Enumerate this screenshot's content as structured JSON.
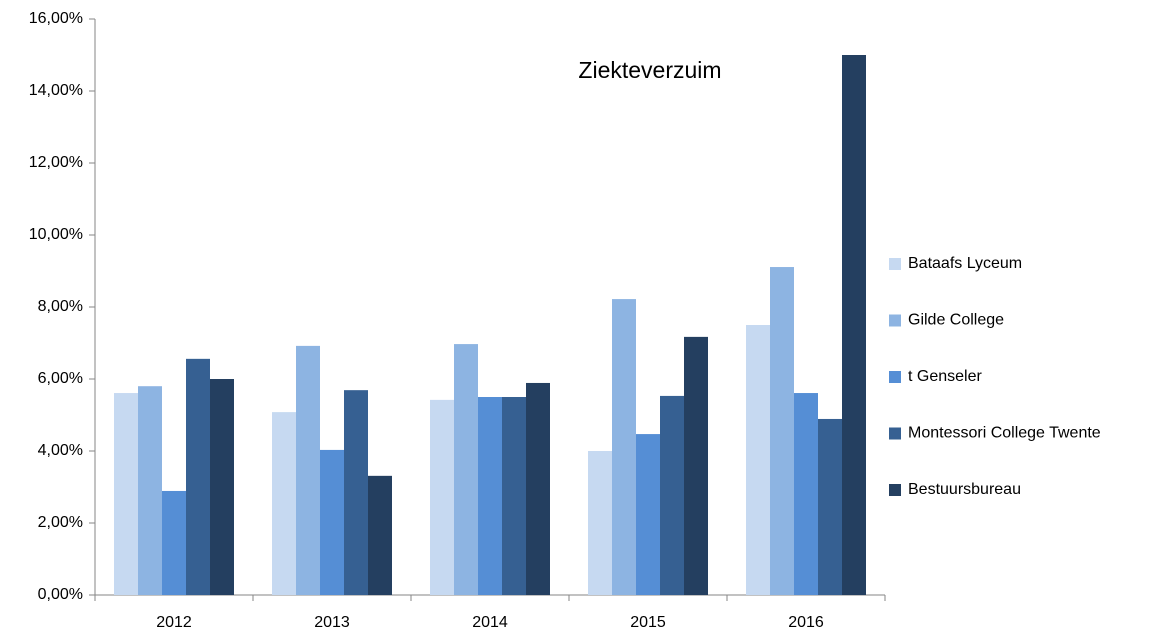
{
  "chart_data": {
    "type": "bar",
    "title": "Ziekteverzuim",
    "categories": [
      "2012",
      "2013",
      "2014",
      "2015",
      "2016"
    ],
    "series": [
      {
        "name": "Bataafs Lyceum",
        "color": "#c6d9f1",
        "values": [
          5.61,
          5.08,
          5.42,
          4.0,
          7.5
        ]
      },
      {
        "name": "Gilde College",
        "color": "#8db4e2",
        "values": [
          5.8,
          6.92,
          6.97,
          8.22,
          9.11
        ]
      },
      {
        "name": "t Genseler",
        "color": "#558ed5",
        "values": [
          2.89,
          4.03,
          5.5,
          4.47,
          5.61
        ]
      },
      {
        "name": "Montessori College Twente",
        "color": "#366092",
        "values": [
          6.56,
          5.69,
          5.5,
          5.53,
          4.89
        ]
      },
      {
        "name": "Bestuursbureau",
        "color": "#243f60",
        "values": [
          6.0,
          3.31,
          5.89,
          7.17,
          15.0
        ]
      }
    ],
    "ylim": [
      0,
      16
    ],
    "yticks": [
      {
        "value": 0,
        "label": "0,00%"
      },
      {
        "value": 2,
        "label": "2,00%"
      },
      {
        "value": 4,
        "label": "4,00%"
      },
      {
        "value": 6,
        "label": "6,00%"
      },
      {
        "value": 8,
        "label": "8,00%"
      },
      {
        "value": 10,
        "label": "10,00%"
      },
      {
        "value": 12,
        "label": "12,00%"
      },
      {
        "value": 14,
        "label": "14,00%"
      },
      {
        "value": 16,
        "label": "16,00%"
      }
    ],
    "legend": "right"
  }
}
